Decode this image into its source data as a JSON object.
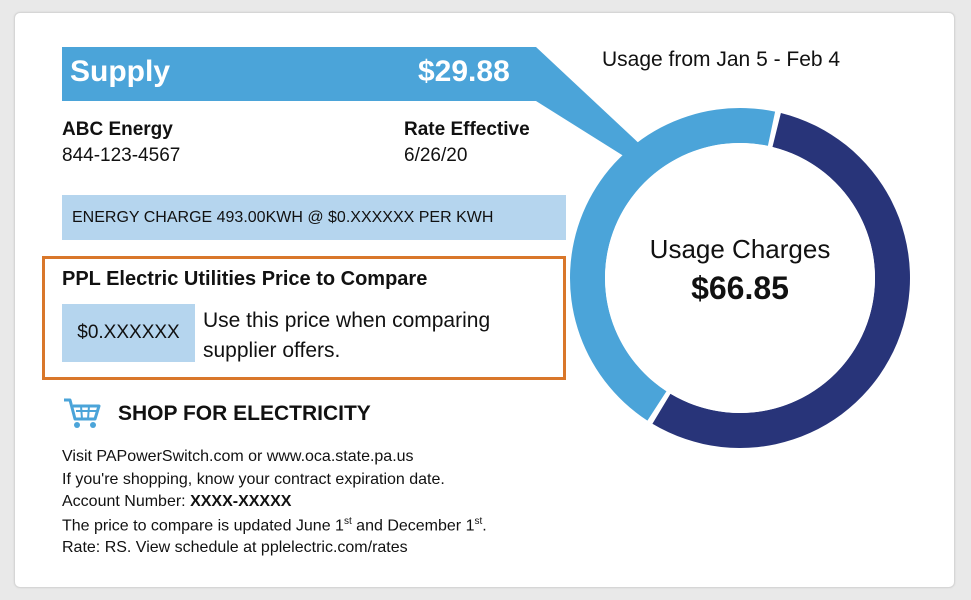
{
  "supply": {
    "label": "Supply",
    "amount": "$29.88",
    "supplier_name": "ABC Energy",
    "supplier_phone": "844-123-4567",
    "rate_effective_label": "Rate Effective",
    "rate_effective_date": "6/26/20",
    "energy_charge": "ENERGY CHARGE 493.00KWH @ $0.XXXXXX PER KWH"
  },
  "price_to_compare": {
    "title": "PPL Electric Utilities Price to Compare",
    "price": "$0.XXXXXX",
    "note": "Use this price when comparing supplier offers."
  },
  "shop": {
    "title": "SHOP FOR ELECTRICITY",
    "line1": "Visit PAPowerSwitch.com or www.oca.state.pa.us",
    "line2": "If you're shopping, know your contract expiration date.",
    "account_label": "Account Number: ",
    "account_value": "XXXX-XXXXX",
    "line4_part1": "The price to compare is updated June 1",
    "line4_sup1": "st",
    "line4_part2": " and December 1",
    "line4_sup2": "st",
    "line4_part3": ".",
    "line5": "Rate: RS. View schedule at pplelectric.com/rates"
  },
  "usage": {
    "period": "Usage from Jan  5 - Feb  4",
    "label": "Usage Charges",
    "amount": "$66.85",
    "supply_share": 0.447,
    "colors": {
      "supply": "#4ba4d9",
      "delivery": "#283479",
      "highlight_box": "#d9772a",
      "light_fill": "#b5d5ee"
    }
  },
  "icons": {
    "cart": "shopping-cart-icon"
  }
}
